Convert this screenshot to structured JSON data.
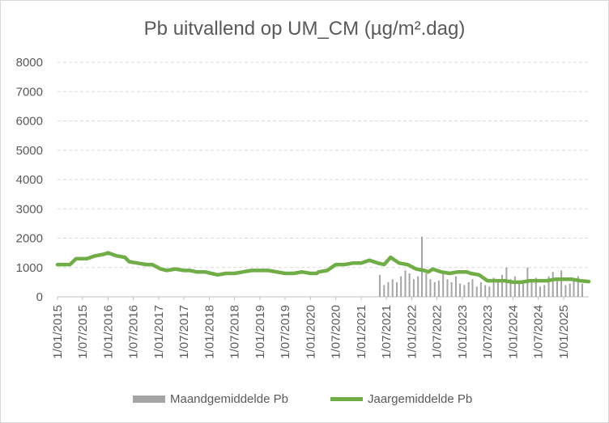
{
  "chart_data": {
    "type": "bar+line",
    "title": "Pb uitvallend op UM_CM (µg/m².dag)",
    "ylim": [
      0,
      8000
    ],
    "yticks": [
      0,
      1000,
      2000,
      3000,
      4000,
      5000,
      6000,
      7000,
      8000
    ],
    "xlim": [
      "2015-01-01",
      "2025-07-01"
    ],
    "xticks": [
      "1/01/2015",
      "1/07/2015",
      "1/01/2016",
      "1/07/2016",
      "1/01/2017",
      "1/07/2017",
      "1/01/2018",
      "1/07/2018",
      "1/01/2019",
      "1/07/2019",
      "1/01/2020",
      "1/07/2020",
      "1/01/2021",
      "1/07/2021",
      "1/01/2022",
      "1/07/2022",
      "1/01/2023",
      "1/07/2023",
      "1/01/2024",
      "1/07/2024",
      "1/01/2025"
    ],
    "grid": "horizontal",
    "legend_position": "bottom",
    "colors": {
      "bars": "#a5a5a5",
      "line": "#70ad47",
      "grid": "#d9d9d9"
    },
    "series": [
      {
        "name": "Maandgemiddelde Pb",
        "kind": "bar",
        "x": [
          "2021-05-15",
          "2021-06-15",
          "2021-07-15",
          "2021-08-15",
          "2021-09-15",
          "2021-10-15",
          "2021-11-15",
          "2021-12-15",
          "2022-01-15",
          "2022-02-15",
          "2022-03-15",
          "2022-04-15",
          "2022-05-15",
          "2022-06-15",
          "2022-07-15",
          "2022-08-15",
          "2022-09-15",
          "2022-10-15",
          "2022-11-15",
          "2022-12-15",
          "2023-01-15",
          "2023-02-15",
          "2023-03-15",
          "2023-04-15",
          "2023-05-15",
          "2023-06-15",
          "2023-07-15",
          "2023-08-15",
          "2023-09-15",
          "2023-10-15",
          "2023-11-15",
          "2023-12-15",
          "2024-01-15",
          "2024-02-15",
          "2024-03-15",
          "2024-04-15",
          "2024-05-15",
          "2024-06-15",
          "2024-07-15",
          "2024-08-15",
          "2024-09-15",
          "2024-10-15",
          "2024-11-15",
          "2024-12-15",
          "2025-01-15",
          "2025-02-15",
          "2025-03-15",
          "2025-04-15",
          "2025-05-15"
        ],
        "values": [
          750,
          400,
          500,
          600,
          500,
          700,
          900,
          800,
          600,
          700,
          2050,
          800,
          600,
          500,
          550,
          800,
          600,
          500,
          700,
          450,
          400,
          500,
          600,
          350,
          500,
          400,
          350,
          650,
          550,
          750,
          1000,
          600,
          700,
          500,
          450,
          1000,
          550,
          650,
          350,
          400,
          700,
          850,
          550,
          900,
          400,
          450,
          600,
          700,
          450
        ]
      },
      {
        "name": "Jaargemiddelde Pb",
        "kind": "line",
        "x": [
          "2015-01-01",
          "2015-04-01",
          "2015-05-15",
          "2015-08-01",
          "2015-10-01",
          "2015-12-01",
          "2016-01-01",
          "2016-03-01",
          "2016-05-01",
          "2016-06-01",
          "2016-08-01",
          "2016-10-01",
          "2016-11-15",
          "2017-01-15",
          "2017-03-01",
          "2017-05-01",
          "2017-07-01",
          "2017-08-15",
          "2017-10-01",
          "2017-12-01",
          "2018-01-15",
          "2018-03-01",
          "2018-05-01",
          "2018-07-01",
          "2018-09-01",
          "2018-11-01",
          "2019-01-01",
          "2019-03-01",
          "2019-05-01",
          "2019-07-01",
          "2019-09-01",
          "2019-11-01",
          "2020-01-01",
          "2020-02-15",
          "2020-03-01",
          "2020-05-01",
          "2020-07-01",
          "2020-09-01",
          "2020-11-01",
          "2021-01-01",
          "2021-03-01",
          "2021-05-01",
          "2021-06-15",
          "2021-08-01",
          "2021-10-01",
          "2021-12-01",
          "2022-02-01",
          "2022-04-01",
          "2022-05-01",
          "2022-06-01",
          "2022-08-01",
          "2022-10-01",
          "2022-12-01",
          "2023-02-01",
          "2023-03-01",
          "2023-05-01",
          "2023-07-01",
          "2023-09-01",
          "2023-11-01",
          "2024-01-01",
          "2024-03-01",
          "2024-05-01",
          "2024-07-01",
          "2024-09-01",
          "2024-11-01",
          "2025-01-01",
          "2025-03-01",
          "2025-05-01",
          "2025-07-01"
        ],
        "values": [
          1100,
          1100,
          1300,
          1300,
          1400,
          1450,
          1500,
          1400,
          1350,
          1200,
          1150,
          1100,
          1100,
          950,
          900,
          950,
          900,
          900,
          850,
          850,
          800,
          750,
          800,
          800,
          850,
          900,
          900,
          900,
          850,
          800,
          800,
          850,
          800,
          800,
          850,
          900,
          1100,
          1100,
          1150,
          1150,
          1250,
          1150,
          1100,
          1350,
          1150,
          1100,
          950,
          900,
          850,
          950,
          850,
          800,
          850,
          850,
          800,
          750,
          550,
          550,
          550,
          500,
          500,
          550,
          550,
          550,
          600,
          600,
          600,
          550,
          520
        ]
      }
    ]
  }
}
